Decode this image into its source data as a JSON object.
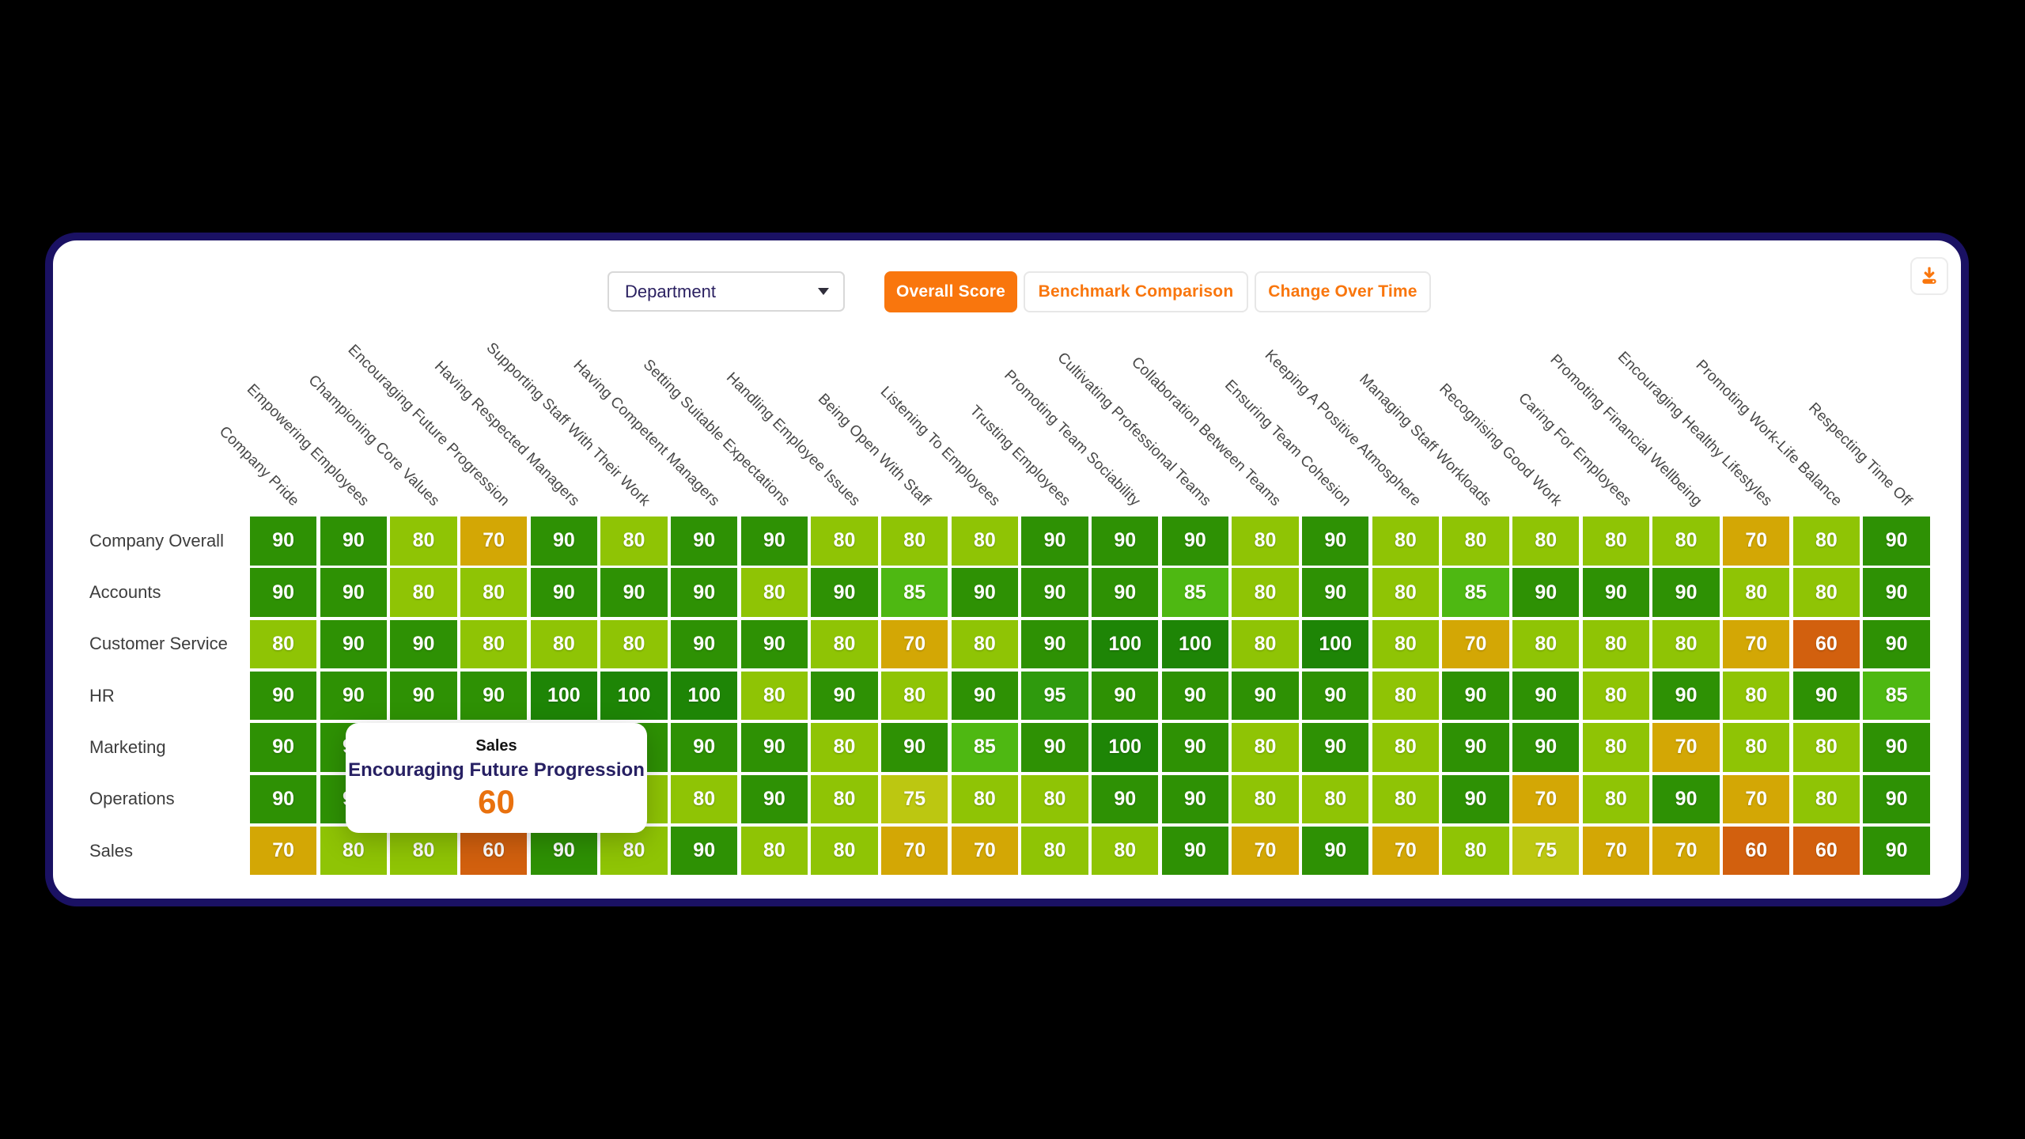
{
  "colors": {
    "background": "#000000",
    "card_border": "#1a1163",
    "accent_orange": "#f9760d",
    "tooltip_category_navy": "#272063",
    "tooltip_value_orange": "#e9710e"
  },
  "toolbar": {
    "dropdown": {
      "value": "Department"
    },
    "buttons": [
      {
        "label": "Overall Score",
        "active": true
      },
      {
        "label": "Benchmark Comparison",
        "active": false
      },
      {
        "label": "Change Over Time",
        "active": false
      }
    ],
    "download_icon": "download-icon"
  },
  "chart_data": {
    "type": "heatmap",
    "columns": [
      "Company Pride",
      "Empowering Employees",
      "Championing Core Values",
      "Encouraging Future Progression",
      "Having Respected Managers",
      "Supporting Staff With Their Work",
      "Having Competent Managers",
      "Setting Suitable Expectations",
      "Handling Employee Issues",
      "Being Open With Staff",
      "Listening To Employees",
      "Trusting Employees",
      "Promoting Team Sociability",
      "Cultivating Professional Teams",
      "Collaboration Between Teams",
      "Ensuring Team Cohesion",
      "Keeping A Positive Atmosphere",
      "Managing Staff Workloads",
      "Recognising Good Work",
      "Caring For Employees",
      "Promoting Financial Wellbeing",
      "Encouraging Healthy Lifestyles",
      "Promoting Work-Life Balance",
      "Respecting Time Off"
    ],
    "rows": [
      "Company Overall",
      "Accounts",
      "Customer Service",
      "HR",
      "Marketing",
      "Operations",
      "Sales"
    ],
    "values": [
      [
        90,
        90,
        80,
        70,
        90,
        80,
        90,
        90,
        80,
        80,
        80,
        90,
        90,
        90,
        80,
        90,
        80,
        80,
        80,
        80,
        80,
        70,
        80,
        90
      ],
      [
        90,
        90,
        80,
        80,
        90,
        90,
        90,
        80,
        90,
        85,
        90,
        90,
        90,
        85,
        80,
        90,
        80,
        85,
        90,
        90,
        90,
        80,
        80,
        90
      ],
      [
        80,
        90,
        90,
        80,
        80,
        80,
        90,
        90,
        80,
        70,
        80,
        90,
        100,
        100,
        80,
        100,
        80,
        70,
        80,
        80,
        80,
        70,
        60,
        90
      ],
      [
        90,
        90,
        90,
        90,
        100,
        100,
        100,
        80,
        90,
        80,
        90,
        95,
        90,
        90,
        90,
        90,
        80,
        90,
        90,
        80,
        90,
        80,
        90,
        85
      ],
      [
        90,
        90,
        null,
        null,
        null,
        null,
        90,
        90,
        80,
        90,
        85,
        90,
        100,
        90,
        80,
        90,
        80,
        90,
        90,
        80,
        70,
        80,
        80,
        90
      ],
      [
        90,
        90,
        null,
        null,
        null,
        null,
        80,
        90,
        80,
        75,
        80,
        80,
        90,
        90,
        80,
        80,
        80,
        90,
        70,
        80,
        90,
        70,
        80,
        90
      ],
      [
        70,
        80,
        80,
        60,
        90,
        80,
        90,
        80,
        80,
        70,
        70,
        80,
        80,
        90,
        70,
        90,
        70,
        80,
        75,
        70,
        70,
        60,
        60,
        90
      ]
    ],
    "color_scale": {
      "60": "#d2600e",
      "70": "#d3a705",
      "75": "#bcc711",
      "80": "#8fc405",
      "85": "#4eb812",
      "90": "#2e9104",
      "95": "#2f9a0d",
      "100": "#1e8506"
    },
    "sliver_colors": {
      "Marketing": {
        "6": "#2e9104"
      },
      "Operations": {
        "6": "#8fc405"
      }
    },
    "value_range": [
      0,
      100
    ],
    "legend": "none"
  },
  "tooltip": {
    "department": "Sales",
    "category": "Encouraging Future Progression",
    "value": "60"
  }
}
